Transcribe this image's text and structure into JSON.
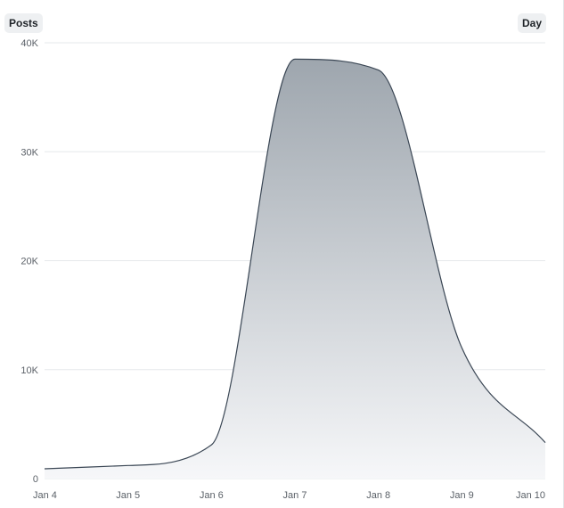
{
  "header": {
    "metric_label": "Posts",
    "interval_label": "Day"
  },
  "chart_data": {
    "type": "area",
    "title": "",
    "xlabel": "",
    "ylabel": "Posts",
    "x": [
      "Jan 4",
      "Jan 5",
      "Jan 6",
      "Jan 7",
      "Jan 8",
      "Jan 9",
      "Jan 10"
    ],
    "series": [
      {
        "values": [
          900,
          1200,
          3100,
          38500,
          37500,
          12000,
          3300
        ]
      }
    ],
    "ylim": [
      0,
      40000
    ],
    "y_ticks": [
      0,
      10000,
      20000,
      30000,
      40000
    ],
    "y_tick_labels": [
      "0",
      "10K",
      "20K",
      "30K",
      "40K"
    ],
    "grid": true,
    "colors": {
      "line": "#3a4654",
      "fill_top": "#9ea6ae",
      "fill_bottom": "#f6f7f9",
      "grid": "#e6e8eb"
    }
  }
}
